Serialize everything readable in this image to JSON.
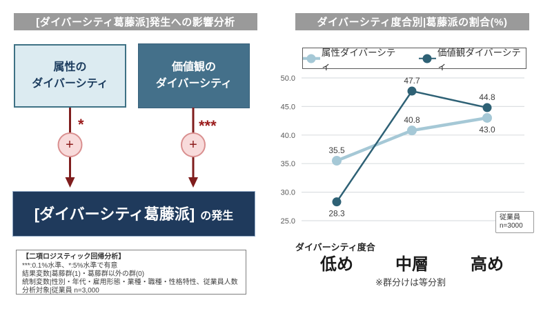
{
  "left_panel": {
    "header": "[ダイバーシティ葛藤派]発生への影響分析",
    "factor_boxes": [
      {
        "label": "属性の\nダイバーシティ"
      },
      {
        "label": "価値観の\nダイバーシティ"
      }
    ],
    "arrows": [
      {
        "plus": "+",
        "significance": "*"
      },
      {
        "plus": "+",
        "significance": "***"
      }
    ],
    "outcome_box": {
      "main": "[ダイバーシティ葛藤派]",
      "suffix": "の発生"
    },
    "note_box": {
      "title": "【二項ロジスティック回帰分析】",
      "lines": [
        "***:0.1%水準、*:5%水準で有意",
        "結果変数|葛藤群(1)・葛藤群以外の群(0)",
        "統制変数|性別・年代・雇用形態・業種・職種・性格特性、従業員人数",
        "分析対象|従業員 n=3,000"
      ]
    }
  },
  "right_panel": {
    "header": "ダイバーシティ度合別|葛藤派の割合(%)",
    "chart_data": {
      "type": "line",
      "title": "ダイバーシティ度合別|葛藤派の割合(%)",
      "categories": [
        "低め",
        "中層",
        "高め"
      ],
      "series": [
        {
          "name": "属性ダイバーシティ",
          "values": [
            35.5,
            40.8,
            43.0
          ],
          "color": "#a5c8d6",
          "line_width": 4.5,
          "marker_radius": 7,
          "label_positions": [
            "above",
            "above",
            "below"
          ]
        },
        {
          "name": "価値観ダイバーシティ",
          "values": [
            28.3,
            47.7,
            44.8
          ],
          "color": "#2e6175",
          "line_width": 2.5,
          "marker_radius": 6.5,
          "label_positions": [
            "below",
            "above",
            "above"
          ]
        }
      ],
      "xlabel": "ダイバーシティ度合",
      "ylabel": "",
      "ylim": [
        25.0,
        50.0
      ],
      "yticks": [
        50.0,
        45.0,
        40.0,
        35.0,
        30.0,
        25.0
      ],
      "grid": "horizontal",
      "legend_position": "top"
    },
    "annotation": "※群分けは等分割",
    "sample_note": {
      "line1": "従業員",
      "line2": "n=3000"
    }
  },
  "colors": {
    "header_bg": "#9a9a9a",
    "attribute_box_bg": "#dcebf1",
    "attribute_box_border": "#3e7184",
    "attribute_text": "#1c3c5e",
    "values_box_bg": "#44708a",
    "outcome_box_bg": "#1f3a5c",
    "arrow_red": "#7f1d1d",
    "plus_circle_bg": "#f8dbdb",
    "plus_circle_border": "#d98f8f",
    "series_attribute": "#a5c8d6",
    "series_values": "#2e6175",
    "gridline": "#dcdfe2",
    "tick_label": "#595959",
    "value_label": "#3d3d3d"
  }
}
